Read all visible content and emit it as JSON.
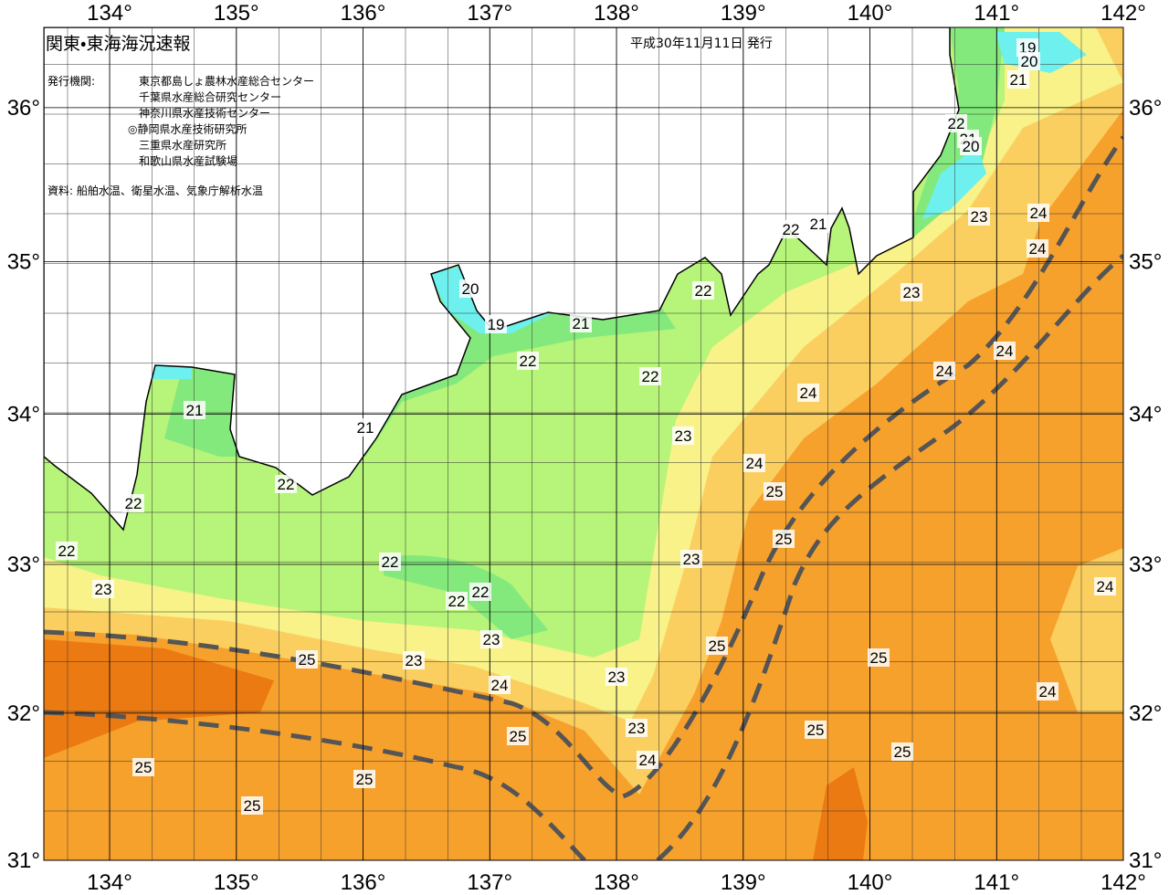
{
  "header": {
    "title": "関東・東海海況速報",
    "date": "平成30年11月11日 発行",
    "issuer_label": "発行機関:",
    "issuers": [
      "東京都島しょ農林水産総合センター",
      "千葉県水産総合研究センター",
      "神奈川県水産技術センター",
      "◎静岡県水産技術研究所",
      "三重県水産研究所",
      "和歌山県水産試験場"
    ],
    "source": "資料: 船舶水温、衛星水温、気象庁解析水温"
  },
  "map": {
    "xticks": [
      {
        "value": 134,
        "label": "134°"
      },
      {
        "value": 135,
        "label": "135°"
      },
      {
        "value": 136,
        "label": "136°"
      },
      {
        "value": 137,
        "label": "137°"
      },
      {
        "value": 138,
        "label": "138°"
      },
      {
        "value": 139,
        "label": "139°"
      },
      {
        "value": 140,
        "label": "140°"
      },
      {
        "value": 141,
        "label": "141°"
      },
      {
        "value": 142,
        "label": "142°"
      }
    ],
    "yticks": [
      {
        "value": 31,
        "label": "31°"
      },
      {
        "value": 32,
        "label": "32°"
      },
      {
        "value": 33,
        "label": "33°"
      },
      {
        "value": 34,
        "label": "34°"
      },
      {
        "value": 35,
        "label": "35°"
      },
      {
        "value": 36,
        "label": "36°"
      }
    ],
    "contour_labels": [
      19,
      20,
      21,
      22,
      21,
      20,
      23,
      24,
      24,
      22,
      21,
      20,
      19,
      21,
      22,
      22,
      22,
      23,
      24,
      24,
      24,
      23,
      24,
      25,
      25,
      23,
      21,
      21,
      22,
      22,
      22,
      23,
      22,
      22,
      22,
      23,
      23,
      25,
      24,
      23,
      25,
      25,
      24,
      24,
      23,
      25,
      24,
      25,
      25,
      25,
      25,
      25
    ]
  }
}
